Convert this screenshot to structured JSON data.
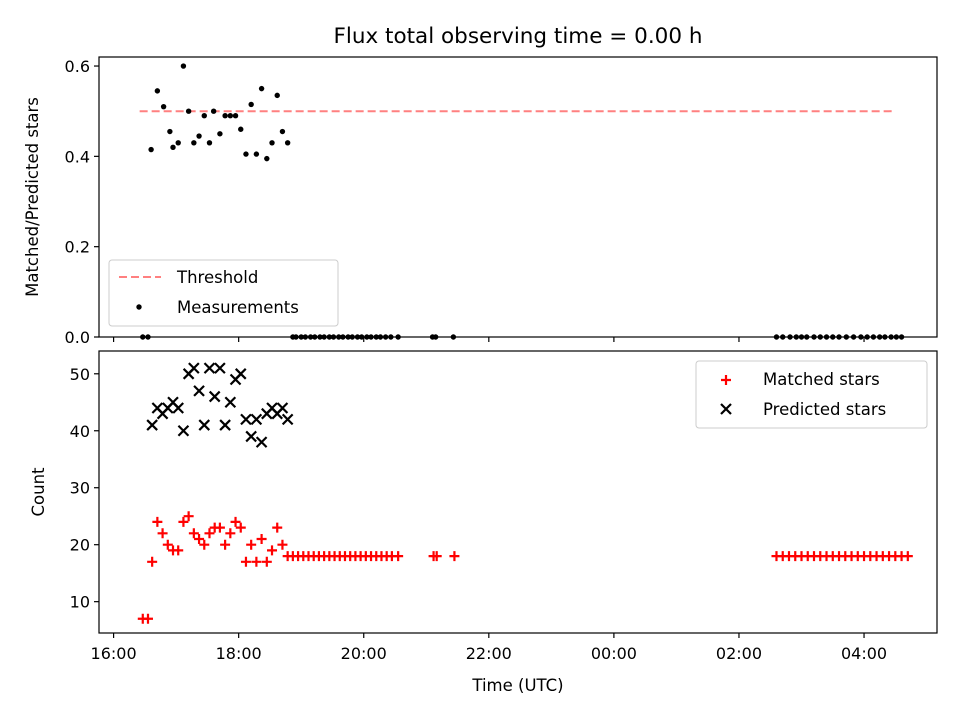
{
  "figure": {
    "title": "Flux total observing time = 0.00 h"
  },
  "chart_data": [
    {
      "type": "scatter",
      "title": "Flux total observing time = 0.00 h",
      "xlabel": "",
      "ylabel": "Matched/Predicted stars",
      "xlim": [
        "15:46",
        "29:10"
      ],
      "ylim": [
        0,
        0.62
      ],
      "yticks": [
        "0.0",
        "0.2",
        "0.4",
        "0.6"
      ],
      "grid": false,
      "legend_position": "lower-left",
      "threshold": {
        "name": "Threshold",
        "value": 0.5,
        "x_start": "16:25",
        "x_end": "28:30",
        "color": "#ff8080"
      },
      "series": [
        {
          "name": "Measurements",
          "color": "#000000",
          "marker": "dot",
          "x": [
            "16:28",
            "16:33",
            "16:36",
            "16:42",
            "16:48",
            "16:54",
            "16:57",
            "17:02",
            "17:07",
            "17:12",
            "17:17",
            "17:22",
            "17:27",
            "17:32",
            "17:36",
            "17:42",
            "17:47",
            "17:52",
            "17:57",
            "18:02",
            "18:07",
            "18:12",
            "18:17",
            "18:22",
            "18:27",
            "18:32",
            "18:37",
            "18:42",
            "18:47",
            "18:52",
            "18:55",
            "19:00",
            "19:04",
            "19:09",
            "19:13",
            "19:18",
            "19:22",
            "19:27",
            "19:31",
            "19:36",
            "19:40",
            "19:45",
            "19:49",
            "19:54",
            "19:58",
            "20:03",
            "20:07",
            "20:12",
            "20:16",
            "20:21",
            "20:26",
            "20:33",
            "21:06",
            "21:09",
            "21:26",
            "26:36",
            "26:42",
            "26:49",
            "26:55",
            "27:00",
            "27:05",
            "27:12",
            "27:18",
            "27:24",
            "27:30",
            "27:36",
            "27:43",
            "27:50",
            "27:57",
            "28:03",
            "28:09",
            "28:15",
            "28:20",
            "28:26",
            "28:31",
            "28:36"
          ],
          "y": [
            0,
            0,
            0.415,
            0.545,
            0.51,
            0.455,
            0.42,
            0.43,
            0.6,
            0.5,
            0.43,
            0.445,
            0.49,
            0.43,
            0.5,
            0.45,
            0.49,
            0.49,
            0.49,
            0.46,
            0.405,
            0.515,
            0.405,
            0.55,
            0.395,
            0.43,
            0.535,
            0.455,
            0.43,
            0,
            0,
            0,
            0,
            0,
            0,
            0,
            0,
            0,
            0,
            0,
            0,
            0,
            0,
            0,
            0,
            0,
            0,
            0,
            0,
            0,
            0,
            0,
            0,
            0,
            0,
            0,
            0,
            0,
            0,
            0,
            0,
            0,
            0,
            0,
            0,
            0,
            0,
            0,
            0,
            0,
            0,
            0,
            0,
            0,
            0,
            0
          ]
        }
      ],
      "legend": [
        "Threshold",
        "Measurements"
      ]
    },
    {
      "type": "scatter",
      "xlabel": "Time (UTC)",
      "ylabel": "Count",
      "xlim": [
        "15:46",
        "29:10"
      ],
      "ylim": [
        4.5,
        54
      ],
      "xticks": [
        "16:00",
        "18:00",
        "20:00",
        "22:00",
        "00:00",
        "02:00",
        "04:00"
      ],
      "yticks": [
        "10",
        "20",
        "30",
        "40",
        "50"
      ],
      "grid": false,
      "legend_position": "upper-right",
      "series": [
        {
          "name": "Matched stars",
          "color": "#ff0000",
          "marker": "plus",
          "x": [
            "16:28",
            "16:33",
            "16:37",
            "16:42",
            "16:47",
            "16:52",
            "16:57",
            "17:02",
            "17:07",
            "17:12",
            "17:17",
            "17:22",
            "17:27",
            "17:32",
            "17:37",
            "17:42",
            "17:47",
            "17:52",
            "17:57",
            "18:02",
            "18:07",
            "18:12",
            "18:17",
            "18:22",
            "18:27",
            "18:32",
            "18:37",
            "18:42",
            "18:47",
            "18:52",
            "18:57",
            "19:02",
            "19:07",
            "19:12",
            "19:17",
            "19:22",
            "19:27",
            "19:32",
            "19:37",
            "19:42",
            "19:47",
            "19:52",
            "19:57",
            "20:02",
            "20:07",
            "20:12",
            "20:17",
            "20:22",
            "20:27",
            "20:33",
            "21:07",
            "21:10",
            "21:27",
            "26:36",
            "26:42",
            "26:48",
            "26:54",
            "27:00",
            "27:06",
            "27:12",
            "27:18",
            "27:24",
            "27:30",
            "27:36",
            "27:42",
            "27:48",
            "27:54",
            "28:00",
            "28:06",
            "28:12",
            "28:18",
            "28:24",
            "28:30",
            "28:36",
            "28:42"
          ],
          "y": [
            7,
            7,
            17,
            24,
            22,
            20,
            19,
            19,
            24,
            25,
            22,
            21,
            20,
            22,
            23,
            23,
            20,
            22,
            24,
            23,
            17,
            20,
            17,
            21,
            17,
            19,
            23,
            20,
            18,
            18,
            18,
            18,
            18,
            18,
            18,
            18,
            18,
            18,
            18,
            18,
            18,
            18,
            18,
            18,
            18,
            18,
            18,
            18,
            18,
            18,
            18,
            18,
            18,
            18,
            18,
            18,
            18,
            18,
            18,
            18,
            18,
            18,
            18,
            18,
            18,
            18,
            18,
            18,
            18,
            18,
            18,
            18,
            18,
            18,
            18
          ]
        },
        {
          "name": "Predicted stars",
          "color": "#000000",
          "marker": "x",
          "x": [
            "16:37",
            "16:42",
            "16:47",
            "16:52",
            "16:57",
            "17:02",
            "17:07",
            "17:12",
            "17:17",
            "17:22",
            "17:27",
            "17:32",
            "17:37",
            "17:42",
            "17:47",
            "17:52",
            "17:57",
            "18:02",
            "18:07",
            "18:12",
            "18:17",
            "18:22",
            "18:27",
            "18:32",
            "18:37",
            "18:42",
            "18:47"
          ],
          "y": [
            41,
            44,
            43,
            44,
            45,
            44,
            40,
            50,
            51,
            47,
            41,
            51,
            46,
            51,
            41,
            45,
            49,
            50,
            42,
            39,
            42,
            38,
            43,
            44,
            43,
            44,
            42
          ]
        }
      ],
      "legend": [
        "Matched stars",
        "Predicted stars"
      ]
    }
  ]
}
